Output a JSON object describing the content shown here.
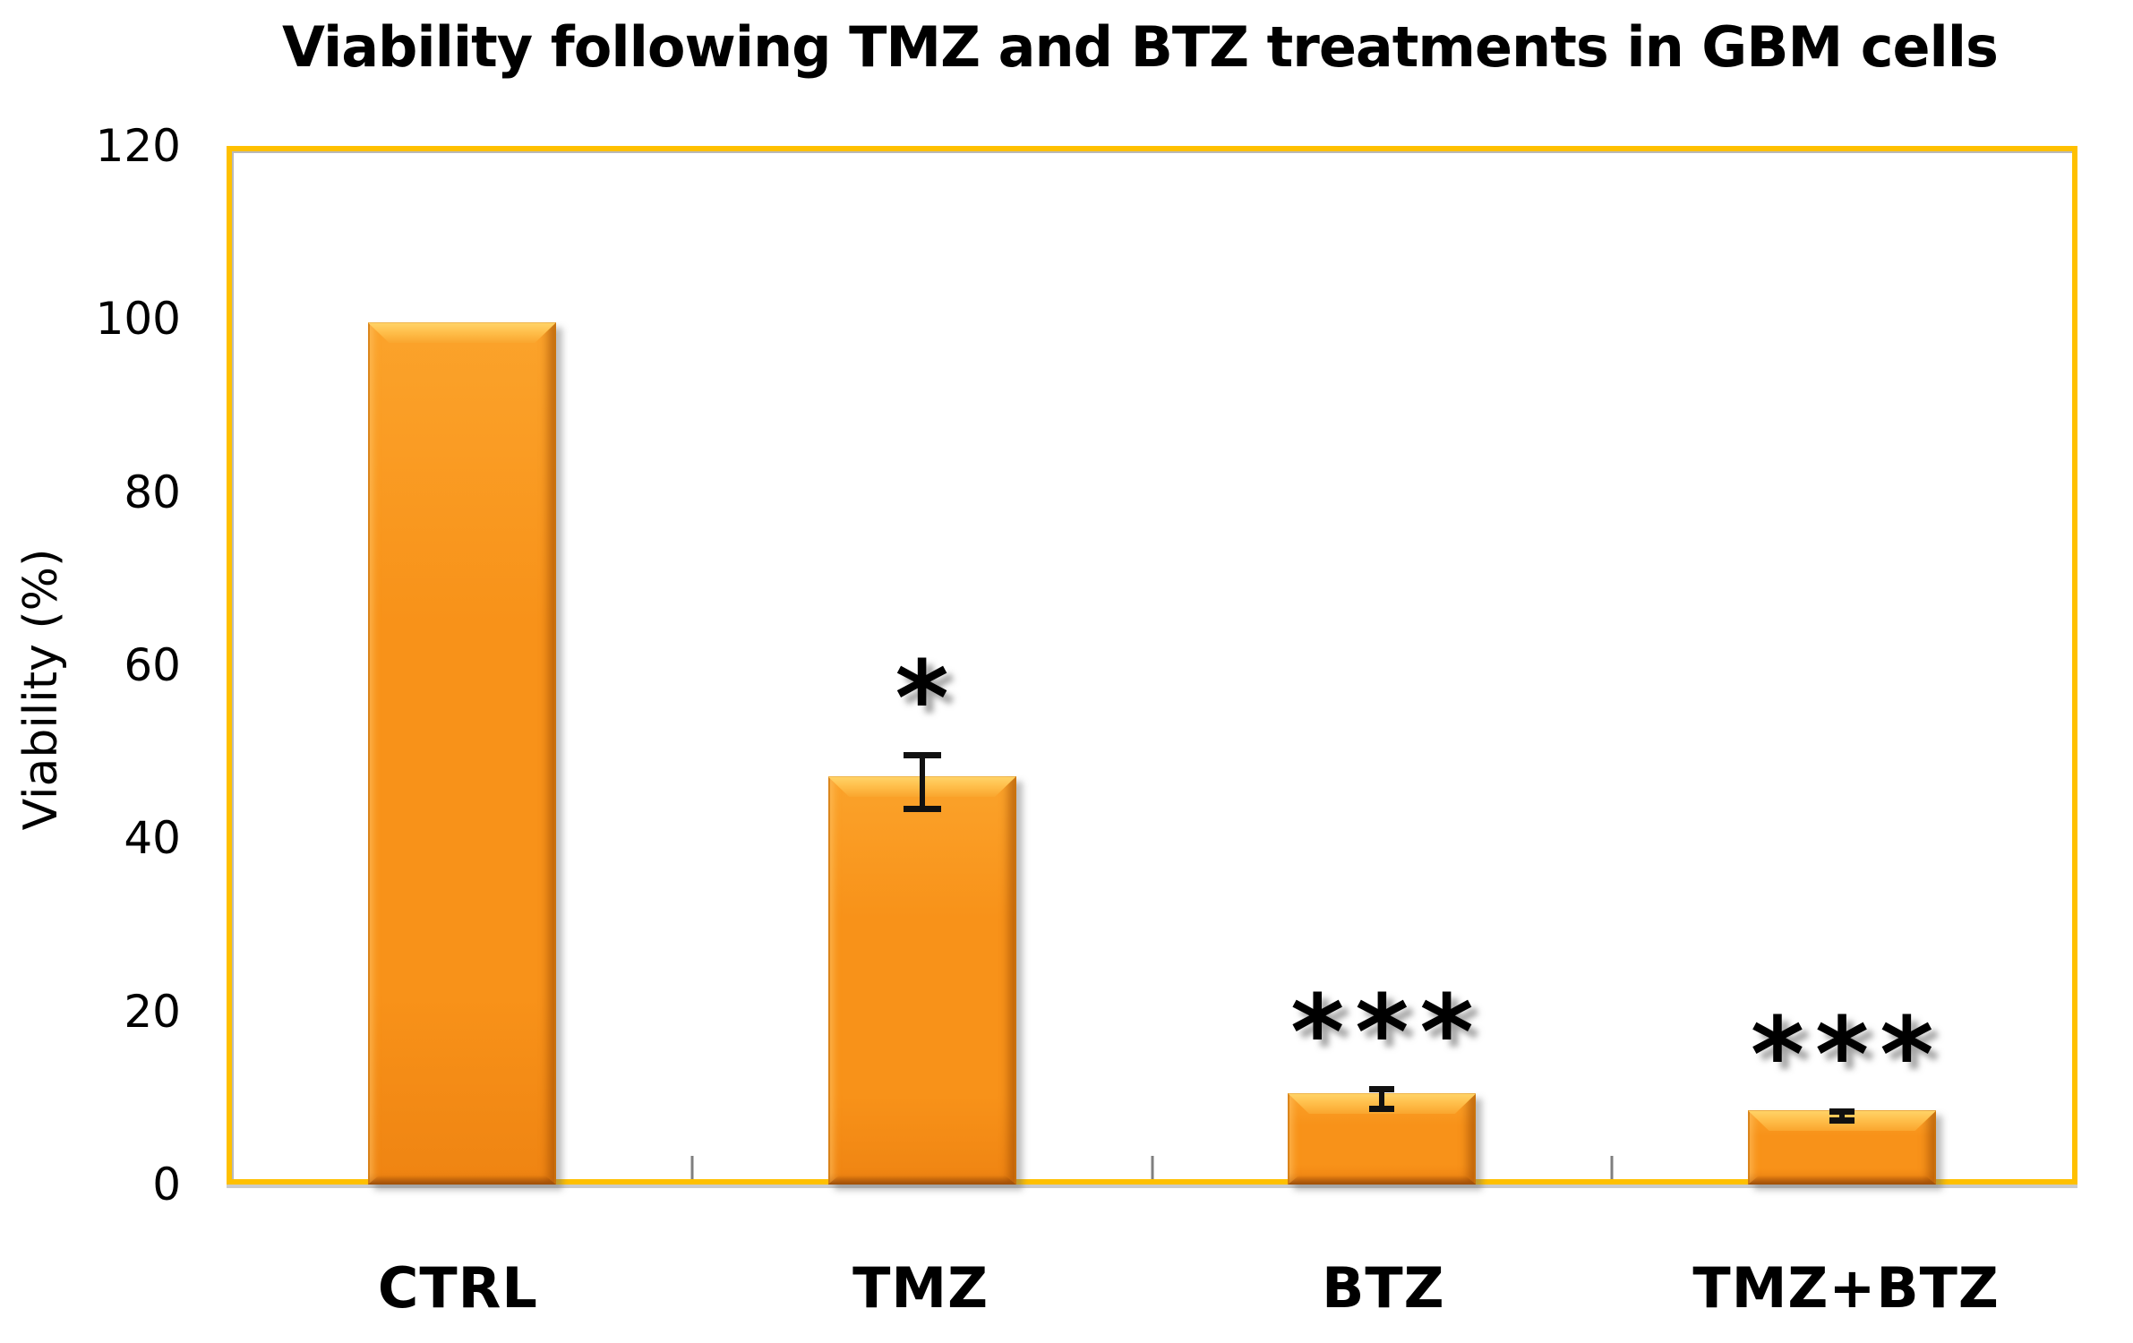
{
  "chart_data": {
    "type": "bar",
    "title": "Viability following TMZ and BTZ treatments in GBM cells",
    "ylabel": "Viability (%)",
    "xlabel": "",
    "categories": [
      "CTRL",
      "TMZ",
      "BTZ",
      "TMZ+BTZ"
    ],
    "values": [
      100,
      47,
      10,
      8
    ],
    "errors": [
      0,
      3.5,
      1.5,
      0.9
    ],
    "significance": [
      "",
      "*",
      "***",
      "***"
    ],
    "ylim": [
      0,
      120
    ],
    "yticks": [
      0,
      20,
      40,
      60,
      80,
      100,
      120
    ],
    "grid": false,
    "legend": "none",
    "colors": {
      "bar": "#F89219",
      "bar_light": "#FBA32B",
      "bar_bevel": "#FFC04D",
      "frame": "#FFC000",
      "error": "#111111",
      "category_tick": "#7F7F7F",
      "text": "#000000",
      "background": "#FFFFFF"
    }
  }
}
